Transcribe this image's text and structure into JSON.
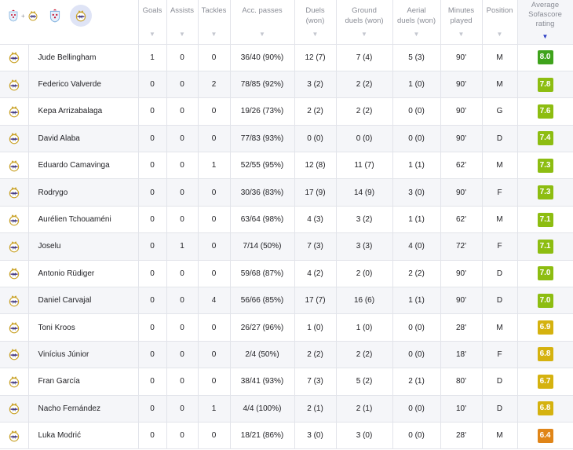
{
  "header": {
    "team_tabs": [
      {
        "name": "combined-teams-tab",
        "selected": false,
        "plus": "+"
      },
      {
        "name": "celta-tab",
        "selected": false
      },
      {
        "name": "real-madrid-tab",
        "selected": true
      }
    ],
    "columns": [
      {
        "key": "goals",
        "label": "Goals",
        "sortable": true
      },
      {
        "key": "assists",
        "label": "Assists",
        "sortable": true
      },
      {
        "key": "tackles",
        "label": "Tackles",
        "sortable": true
      },
      {
        "key": "acc_passes",
        "label": "Acc. passes",
        "sortable": true
      },
      {
        "key": "duels",
        "label": "Duels\n(won)",
        "sortable": true
      },
      {
        "key": "ground_duels",
        "label": "Ground\nduels (won)",
        "sortable": true
      },
      {
        "key": "aerial_duels",
        "label": "Aerial\nduels (won)",
        "sortable": true
      },
      {
        "key": "minutes",
        "label": "Minutes\nplayed",
        "sortable": true
      },
      {
        "key": "position",
        "label": "Position",
        "sortable": true
      },
      {
        "key": "rating",
        "label": "Average\nSofascore\nrating",
        "sortable": true,
        "active": true
      }
    ]
  },
  "colors": {
    "rating_dark_green": "#3fa31c",
    "rating_green": "#8dbd11",
    "rating_yellow_green": "#b5c609",
    "rating_yellow": "#d5b20f",
    "rating_orange": "#e08518",
    "accent_sort": "#2c3ec4"
  },
  "players": [
    {
      "name": "Jude Bellingham",
      "goals": "1",
      "assists": "0",
      "tackles": "0",
      "acc_passes": "36/40 (90%)",
      "duels": "12 (7)",
      "ground_duels": "7 (4)",
      "aerial_duels": "5 (3)",
      "minutes": "90'",
      "position": "M",
      "rating": "8.0",
      "rating_color": "#3fa31c"
    },
    {
      "name": "Federico Valverde",
      "goals": "0",
      "assists": "0",
      "tackles": "2",
      "acc_passes": "78/85 (92%)",
      "duels": "3 (2)",
      "ground_duels": "2 (2)",
      "aerial_duels": "1 (0)",
      "minutes": "90'",
      "position": "M",
      "rating": "7.8",
      "rating_color": "#8dbd11"
    },
    {
      "name": "Kepa Arrizabalaga",
      "goals": "0",
      "assists": "0",
      "tackles": "0",
      "acc_passes": "19/26 (73%)",
      "duels": "2 (2)",
      "ground_duels": "2 (2)",
      "aerial_duels": "0 (0)",
      "minutes": "90'",
      "position": "G",
      "rating": "7.6",
      "rating_color": "#8dbd11"
    },
    {
      "name": "David Alaba",
      "goals": "0",
      "assists": "0",
      "tackles": "0",
      "acc_passes": "77/83 (93%)",
      "duels": "0 (0)",
      "ground_duels": "0 (0)",
      "aerial_duels": "0 (0)",
      "minutes": "90'",
      "position": "D",
      "rating": "7.4",
      "rating_color": "#8dbd11"
    },
    {
      "name": "Eduardo Camavinga",
      "goals": "0",
      "assists": "0",
      "tackles": "1",
      "acc_passes": "52/55 (95%)",
      "duels": "12 (8)",
      "ground_duels": "11 (7)",
      "aerial_duels": "1 (1)",
      "minutes": "62'",
      "position": "M",
      "rating": "7.3",
      "rating_color": "#8dbd11"
    },
    {
      "name": "Rodrygo",
      "goals": "0",
      "assists": "0",
      "tackles": "0",
      "acc_passes": "30/36 (83%)",
      "duels": "17 (9)",
      "ground_duels": "14 (9)",
      "aerial_duels": "3 (0)",
      "minutes": "90'",
      "position": "F",
      "rating": "7.3",
      "rating_color": "#8dbd11"
    },
    {
      "name": "Aurélien Tchouaméni",
      "goals": "0",
      "assists": "0",
      "tackles": "0",
      "acc_passes": "63/64 (98%)",
      "duels": "4 (3)",
      "ground_duels": "3 (2)",
      "aerial_duels": "1 (1)",
      "minutes": "62'",
      "position": "M",
      "rating": "7.1",
      "rating_color": "#8dbd11"
    },
    {
      "name": "Joselu",
      "goals": "0",
      "assists": "1",
      "tackles": "0",
      "acc_passes": "7/14 (50%)",
      "duels": "7 (3)",
      "ground_duels": "3 (3)",
      "aerial_duels": "4 (0)",
      "minutes": "72'",
      "position": "F",
      "rating": "7.1",
      "rating_color": "#8dbd11"
    },
    {
      "name": "Antonio Rüdiger",
      "goals": "0",
      "assists": "0",
      "tackles": "0",
      "acc_passes": "59/68 (87%)",
      "duels": "4 (2)",
      "ground_duels": "2 (0)",
      "aerial_duels": "2 (2)",
      "minutes": "90'",
      "position": "D",
      "rating": "7.0",
      "rating_color": "#8dbd11"
    },
    {
      "name": "Daniel Carvajal",
      "goals": "0",
      "assists": "0",
      "tackles": "4",
      "acc_passes": "56/66 (85%)",
      "duels": "17 (7)",
      "ground_duels": "16 (6)",
      "aerial_duels": "1 (1)",
      "minutes": "90'",
      "position": "D",
      "rating": "7.0",
      "rating_color": "#8dbd11"
    },
    {
      "name": "Toni Kroos",
      "goals": "0",
      "assists": "0",
      "tackles": "0",
      "acc_passes": "26/27 (96%)",
      "duels": "1 (0)",
      "ground_duels": "1 (0)",
      "aerial_duels": "0 (0)",
      "minutes": "28'",
      "position": "M",
      "rating": "6.9",
      "rating_color": "#d5b20f"
    },
    {
      "name": "Vinícius Júnior",
      "goals": "0",
      "assists": "0",
      "tackles": "0",
      "acc_passes": "2/4 (50%)",
      "duels": "2 (2)",
      "ground_duels": "2 (2)",
      "aerial_duels": "0 (0)",
      "minutes": "18'",
      "position": "F",
      "rating": "6.8",
      "rating_color": "#d5b20f"
    },
    {
      "name": "Fran García",
      "goals": "0",
      "assists": "0",
      "tackles": "0",
      "acc_passes": "38/41 (93%)",
      "duels": "7 (3)",
      "ground_duels": "5 (2)",
      "aerial_duels": "2 (1)",
      "minutes": "80'",
      "position": "D",
      "rating": "6.7",
      "rating_color": "#d5b20f"
    },
    {
      "name": "Nacho Fernández",
      "goals": "0",
      "assists": "0",
      "tackles": "1",
      "acc_passes": "4/4 (100%)",
      "duels": "2 (1)",
      "ground_duels": "2 (1)",
      "aerial_duels": "0 (0)",
      "minutes": "10'",
      "position": "D",
      "rating": "6.8",
      "rating_color": "#d5b20f"
    },
    {
      "name": "Luka Modrić",
      "goals": "0",
      "assists": "0",
      "tackles": "0",
      "acc_passes": "18/21 (86%)",
      "duels": "3 (0)",
      "ground_duels": "3 (0)",
      "aerial_duels": "0 (0)",
      "minutes": "28'",
      "position": "M",
      "rating": "6.4",
      "rating_color": "#e08518"
    }
  ]
}
